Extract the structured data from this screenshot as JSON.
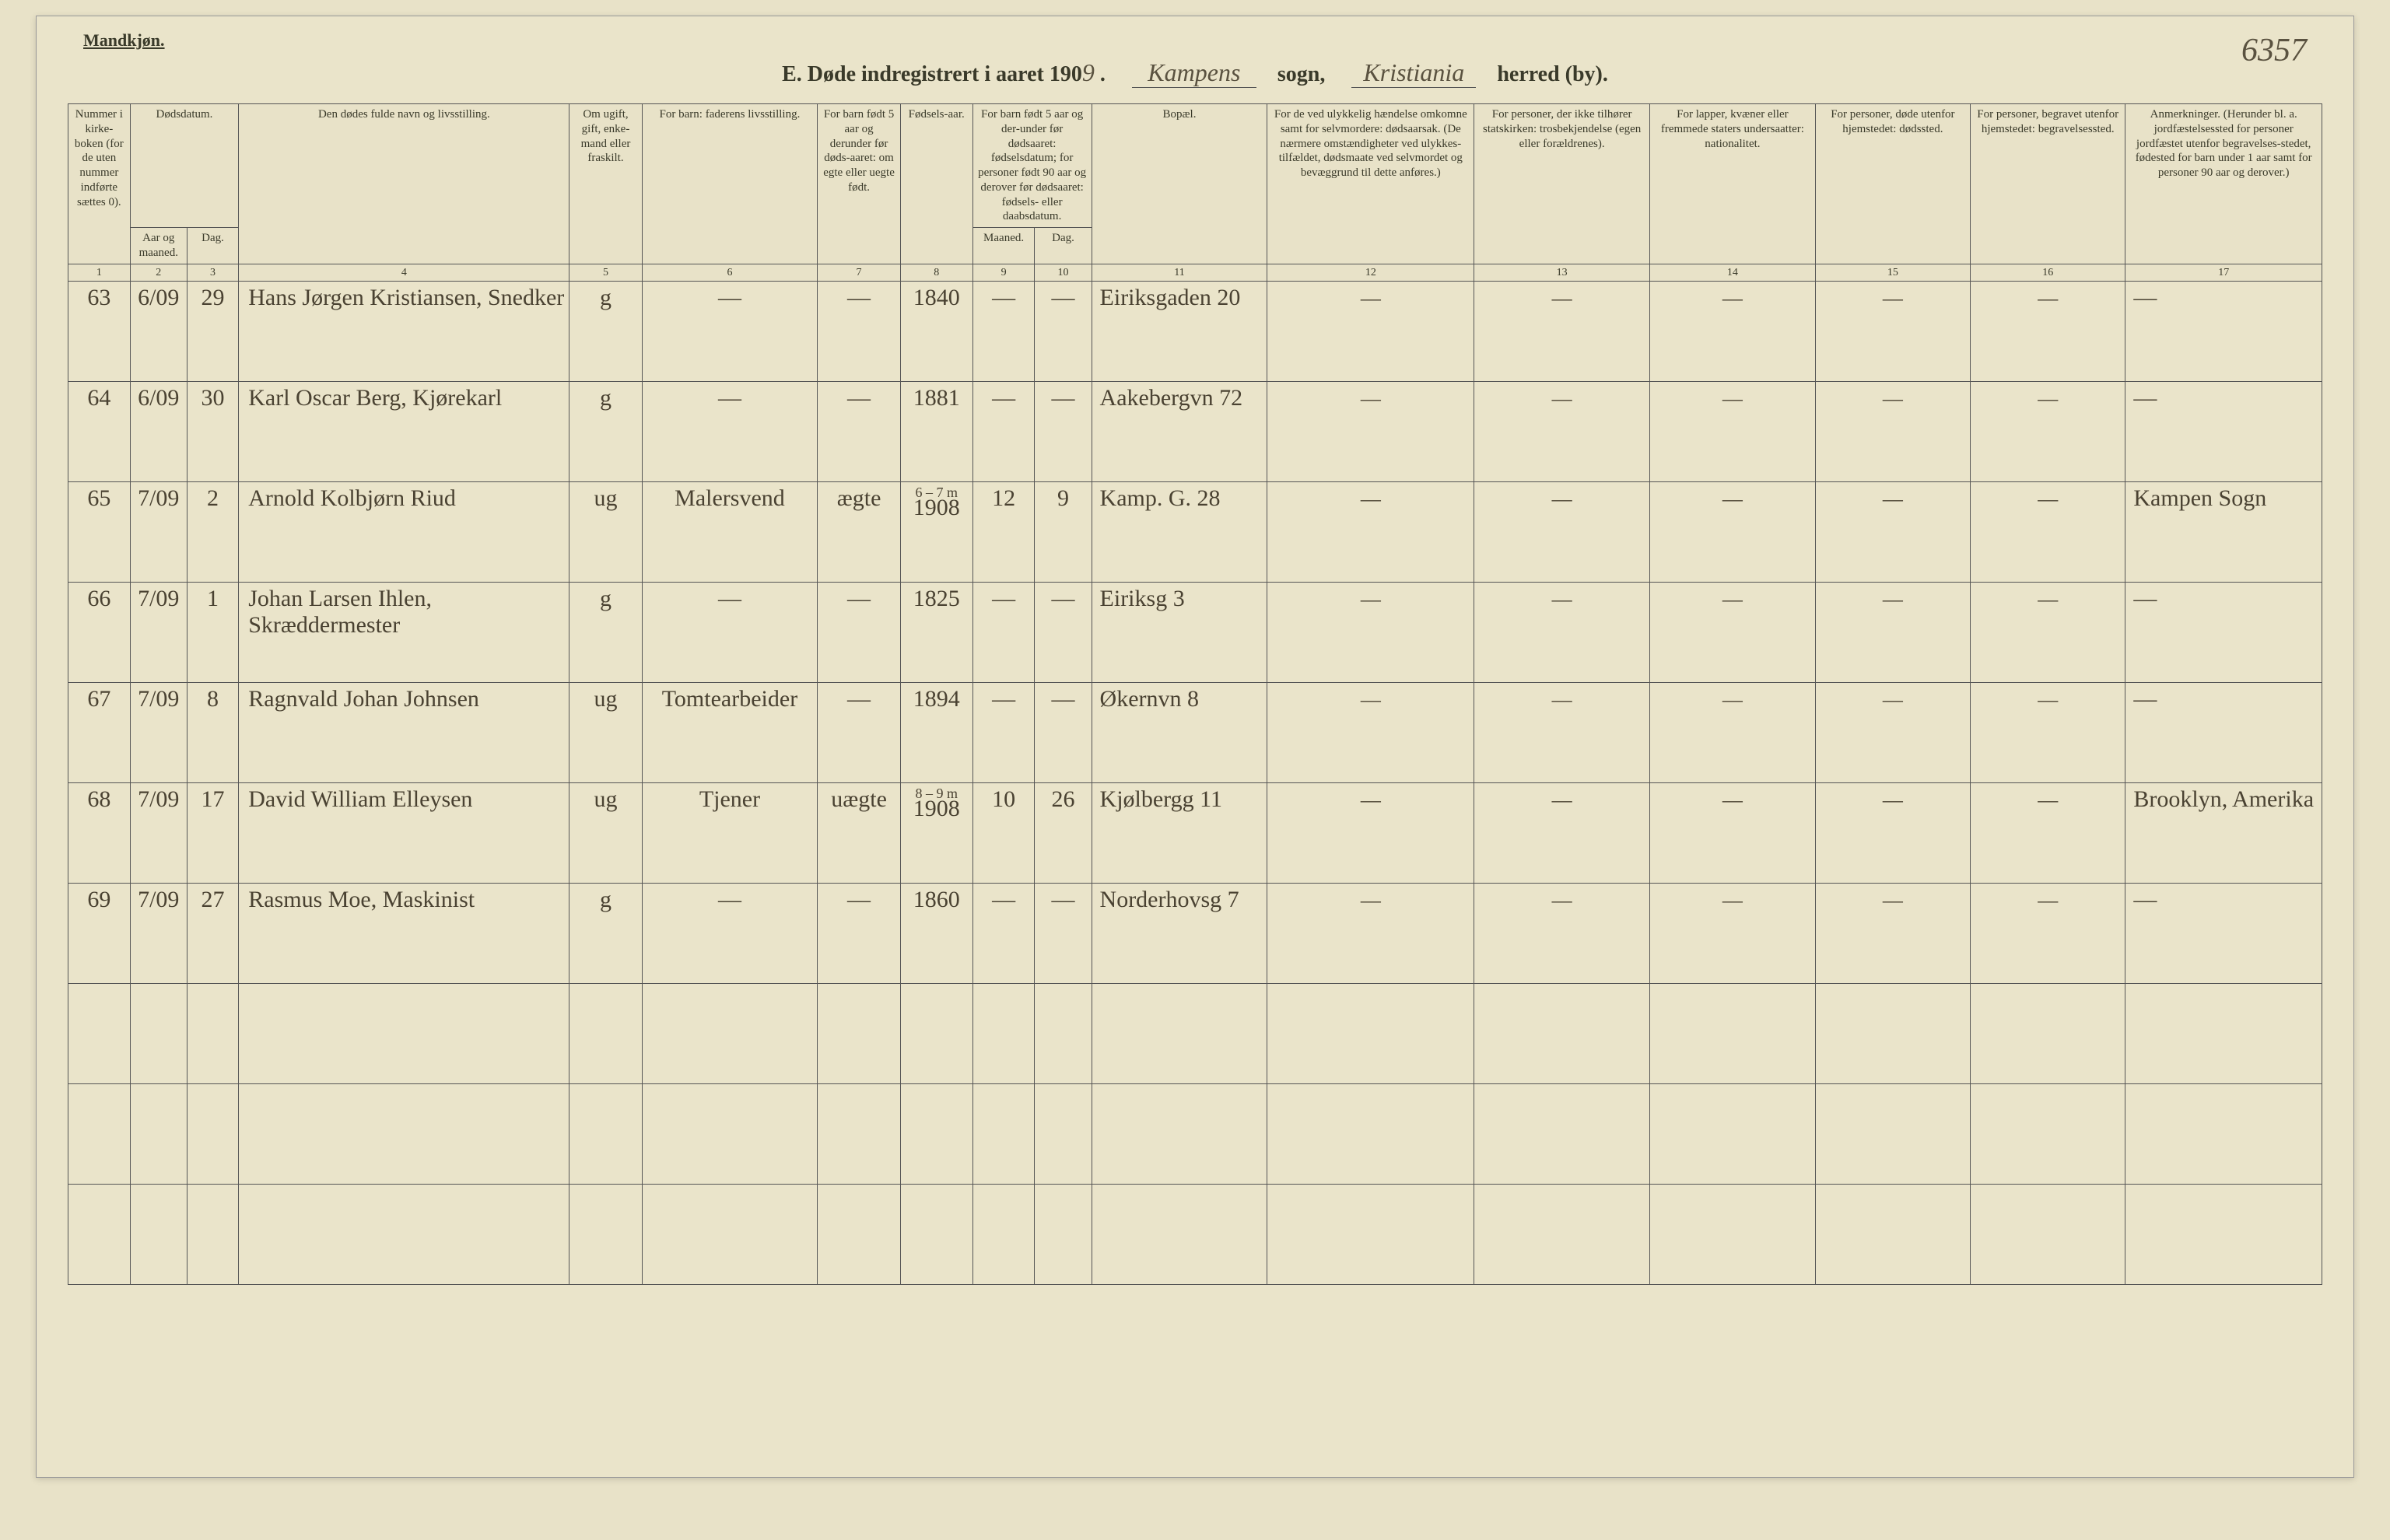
{
  "header": {
    "gender_label": "Mandkjøn.",
    "title_prefix": "E.  Døde indregistrert i aaret 190",
    "year_suffix": "9",
    "parish_script": "Kampens",
    "sogn_label": "sogn,",
    "district_script": "Kristiania",
    "herred_label": "herred (by).",
    "page_note": "6357"
  },
  "columns": {
    "1": "Nummer i kirke-boken (for de uten nummer indførte sættes 0).",
    "2_top": "Dødsdatum.",
    "2": "Aar og maaned.",
    "3": "Dag.",
    "4": "Den dødes fulde navn og livsstilling.",
    "5": "Om ugift, gift, enke-mand eller fraskilt.",
    "6": "For barn: faderens livsstilling.",
    "7": "For barn født 5 aar og derunder før døds-aaret: om egte eller uegte født.",
    "8": "Fødsels-aar.",
    "9_10_top": "For barn født 5 aar og der-under før dødsaaret: fødselsdatum; for personer født 90 aar og derover før dødsaaret: fødsels- eller daabsdatum.",
    "9": "Maaned.",
    "10": "Dag.",
    "11": "Bopæl.",
    "12": "For de ved ulykkelig hændelse omkomne samt for selvmordere: dødsaarsak. (De nærmere omstændigheter ved ulykkes-tilfældet, dødsmaate ved selvmordet og bevæggrund til dette anføres.)",
    "13": "For personer, der ikke tilhører statskirken: trosbekjendelse (egen eller forældrenes).",
    "14": "For lapper, kvæner eller fremmede staters undersaatter: nationalitet.",
    "15": "For personer, døde utenfor hjemstedet: dødssted.",
    "16": "For personer, begravet utenfor hjemstedet: begravelsessted.",
    "17": "Anmerkninger. (Herunder bl. a. jordfæstelsessted for personer jordfæstet utenfor begravelses-stedet, fødested for barn under 1 aar samt for personer 90 aar og derover.)"
  },
  "colnums": [
    "1",
    "2",
    "3",
    "4",
    "5",
    "6",
    "7",
    "8",
    "9",
    "10",
    "11",
    "12",
    "13",
    "14",
    "15",
    "16",
    "17"
  ],
  "rows": [
    {
      "num": "63",
      "month": "6/09",
      "day": "29",
      "name": "Hans Jørgen Kristiansen, Snedker",
      "marital": "g",
      "father": "—",
      "legit": "—",
      "birth_year": "1840",
      "b_sup": "",
      "b_mon": "—",
      "b_day": "—",
      "addr": "Eiriksgaden 20",
      "c12": "—",
      "c13": "—",
      "c14": "—",
      "c15": "—",
      "c16": "—",
      "c17": "—"
    },
    {
      "num": "64",
      "month": "6/09",
      "day": "30",
      "name": "Karl Oscar Berg, Kjørekarl",
      "marital": "g",
      "father": "—",
      "legit": "—",
      "birth_year": "1881",
      "b_sup": "",
      "b_mon": "—",
      "b_day": "—",
      "addr": "Aakebergvn 72",
      "c12": "—",
      "c13": "—",
      "c14": "—",
      "c15": "—",
      "c16": "—",
      "c17": "—"
    },
    {
      "num": "65",
      "month": "7/09",
      "day": "2",
      "name": "Arnold Kolbjørn Riud",
      "marital": "ug",
      "father": "Malersvend",
      "legit": "ægte",
      "birth_year": "1908",
      "b_sup": "6 – 7 m",
      "b_mon": "12",
      "b_day": "9",
      "addr": "Kamp. G. 28",
      "c12": "—",
      "c13": "—",
      "c14": "—",
      "c15": "—",
      "c16": "—",
      "c17": "Kampen Sogn"
    },
    {
      "num": "66",
      "month": "7/09",
      "day": "1",
      "name": "Johan Larsen Ihlen, Skræddermester",
      "marital": "g",
      "father": "—",
      "legit": "—",
      "birth_year": "1825",
      "b_sup": "",
      "b_mon": "—",
      "b_day": "—",
      "addr": "Eiriksg 3",
      "c12": "—",
      "c13": "—",
      "c14": "—",
      "c15": "—",
      "c16": "—",
      "c17": "—"
    },
    {
      "num": "67",
      "month": "7/09",
      "day": "8",
      "name": "Ragnvald Johan Johnsen",
      "marital": "ug",
      "father": "Tomtearbeider",
      "legit": "—",
      "birth_year": "1894",
      "b_sup": "",
      "b_mon": "—",
      "b_day": "—",
      "addr": "Økernvn 8",
      "c12": "—",
      "c13": "—",
      "c14": "—",
      "c15": "—",
      "c16": "—",
      "c17": "—"
    },
    {
      "num": "68",
      "month": "7/09",
      "day": "17",
      "name": "David William Elleysen",
      "marital": "ug",
      "father": "Tjener",
      "legit": "uægte",
      "birth_year": "1908",
      "b_sup": "8 – 9 m",
      "b_mon": "10",
      "b_day": "26",
      "addr": "Kjølbergg 11",
      "c12": "—",
      "c13": "—",
      "c14": "—",
      "c15": "—",
      "c16": "—",
      "c17": "Brooklyn, Amerika"
    },
    {
      "num": "69",
      "month": "7/09",
      "day": "27",
      "name": "Rasmus Moe, Maskinist",
      "marital": "g",
      "father": "—",
      "legit": "—",
      "birth_year": "1860",
      "b_sup": "",
      "b_mon": "—",
      "b_day": "—",
      "addr": "Norderhovsg 7",
      "c12": "—",
      "c13": "—",
      "c14": "—",
      "c15": "—",
      "c16": "—",
      "c17": "—"
    }
  ],
  "blank_rows": 3
}
